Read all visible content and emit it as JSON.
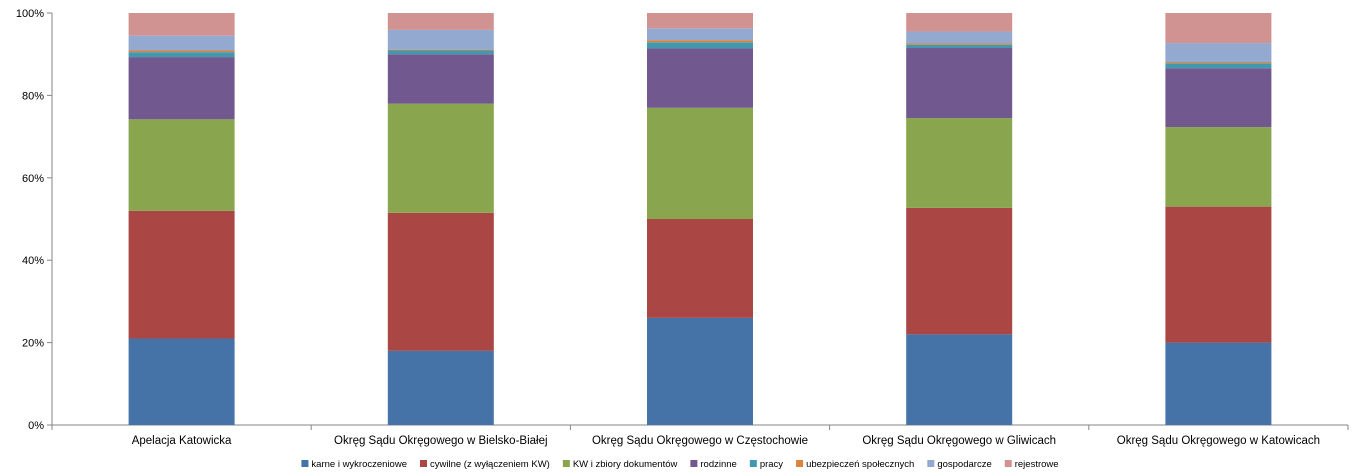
{
  "chart_data": {
    "type": "bar",
    "stacked": true,
    "percent": true,
    "title": "",
    "xlabel": "",
    "ylabel": "",
    "ylim": [
      0,
      100
    ],
    "y_ticks": [
      "0%",
      "20%",
      "40%",
      "60%",
      "80%",
      "100%"
    ],
    "grid": false,
    "legend_position": "bottom",
    "categories": [
      "Apelacja Katowicka",
      "Okręg Sądu Okręgowego w Bielsko-Białej",
      "Okręg Sądu Okręgowego w Częstochowie",
      "Okręg Sądu Okręgowego w Gliwicach",
      "Okręg Sądu Okręgowego w Katowicach"
    ],
    "series": [
      {
        "name": "karne i wykroczeniowe",
        "color": "#4572A7",
        "values": [
          21.0,
          18.0,
          26.0,
          22.0,
          20.0
        ]
      },
      {
        "name": "cywilne (z wyłączeniem KW)",
        "color": "#AA4643",
        "values": [
          31.0,
          33.5,
          24.0,
          30.7,
          33.0
        ]
      },
      {
        "name": "KW i zbiory dokumentów",
        "color": "#89A54E",
        "values": [
          22.2,
          26.5,
          27.0,
          21.8,
          19.3
        ]
      },
      {
        "name": "rodzinne",
        "color": "#71588F",
        "values": [
          15.1,
          12.0,
          14.4,
          17.0,
          14.3
        ]
      },
      {
        "name": "pracy",
        "color": "#4198AF",
        "values": [
          1.2,
          0.9,
          1.5,
          0.8,
          1.2
        ]
      },
      {
        "name": "ubezpieczeń społecznych",
        "color": "#DB843D",
        "values": [
          0.4,
          0.2,
          0.5,
          0.3,
          0.3
        ]
      },
      {
        "name": "gospodarcze",
        "color": "#93A9CF",
        "values": [
          3.6,
          4.8,
          2.9,
          2.9,
          4.6
        ]
      },
      {
        "name": "rejestrowe",
        "color": "#D19392",
        "values": [
          5.5,
          4.1,
          3.7,
          4.5,
          7.3
        ]
      }
    ]
  }
}
